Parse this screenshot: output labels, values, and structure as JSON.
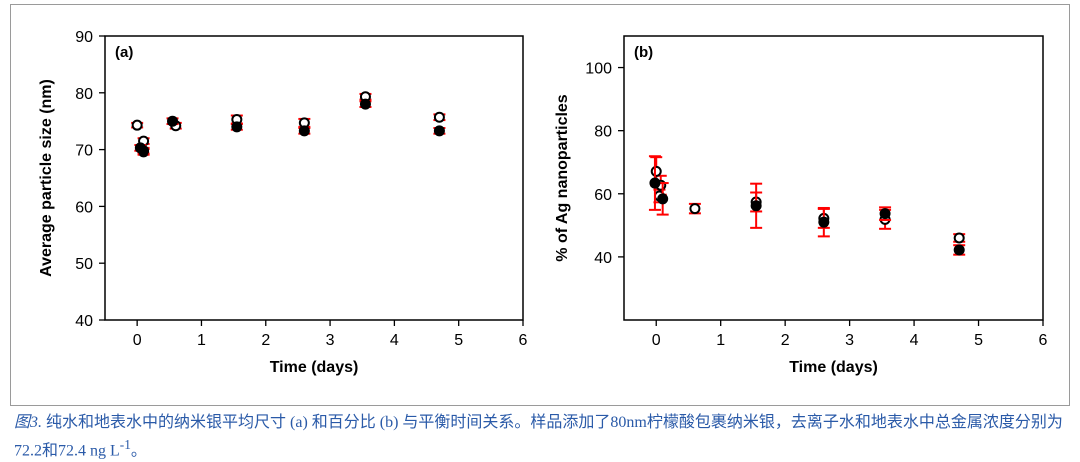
{
  "chart_data": [
    {
      "type": "scatter",
      "panel_label": "(a)",
      "xlabel": "Time (days)",
      "ylabel": "Average particle size (nm)",
      "xlim": [
        -0.5,
        6
      ],
      "ylim": [
        40,
        90
      ],
      "xticks": [
        0,
        1,
        2,
        3,
        4,
        5,
        6
      ],
      "yticks": [
        40,
        50,
        60,
        70,
        80,
        90
      ],
      "grid": false,
      "series": [
        {
          "marker": "open-circle",
          "x": [
            0,
            0.1,
            0.1,
            0.6,
            1.55,
            2.6,
            3.55,
            4.7
          ],
          "y": [
            74.3,
            71.5,
            69.6,
            74.2,
            75.3,
            74.7,
            79.3,
            75.7
          ],
          "err": [
            0.4,
            0.5,
            0.5,
            0.5,
            0.7,
            0.7,
            0.5,
            0.5
          ]
        },
        {
          "marker": "filled-circle",
          "x": [
            0.05,
            0.1,
            0.55,
            1.55,
            2.6,
            3.55,
            4.7
          ],
          "y": [
            70.3,
            69.8,
            75.0,
            74.0,
            73.3,
            78.0,
            73.3
          ],
          "err": [
            0.5,
            0.5,
            0.5,
            0.5,
            0.5,
            0.5,
            0.5
          ]
        }
      ],
      "errorbar_color": "#ff0000"
    },
    {
      "type": "scatter",
      "panel_label": "(b)",
      "xlabel": "Time (days)",
      "ylabel": "% of Ag nanoparticles",
      "xlim": [
        -0.5,
        6
      ],
      "ylim": [
        20,
        110
      ],
      "xticks": [
        0,
        1,
        2,
        3,
        4,
        5,
        6
      ],
      "yticks": [
        40,
        60,
        80,
        100
      ],
      "grid": false,
      "series": [
        {
          "marker": "open-circle",
          "x": [
            0,
            0.07,
            0.05,
            0.6,
            1.55,
            2.6,
            3.55,
            4.7
          ],
          "y": [
            67.1,
            62.7,
            59.3,
            55.3,
            57.4,
            52.2,
            51.9,
            46.0
          ],
          "err": [
            4.5,
            3,
            2,
            1.5,
            3,
            3,
            3,
            1.2
          ]
        },
        {
          "marker": "filled-circle",
          "x": [
            -0.02,
            0.1,
            1.55,
            2.6,
            3.55,
            4.7
          ],
          "y": [
            63.4,
            58.4,
            56.2,
            51.0,
            53.7,
            42.2
          ],
          "err": [
            8.5,
            5,
            7,
            4.5,
            2,
            1.5
          ]
        }
      ],
      "errorbar_color": "#ff0000"
    }
  ],
  "caption": {
    "figure_label": "图3.",
    "text": " 纯水和地表水中的纳米银平均尺寸 (a) 和百分比 (b) 与平衡时间关系。样品添加了80nm柠檬酸包裹纳米银，去离子水和地表水中总金属浓度分别为72.2和72.4 ng L",
    "superscript": "-1",
    "end": "。"
  }
}
